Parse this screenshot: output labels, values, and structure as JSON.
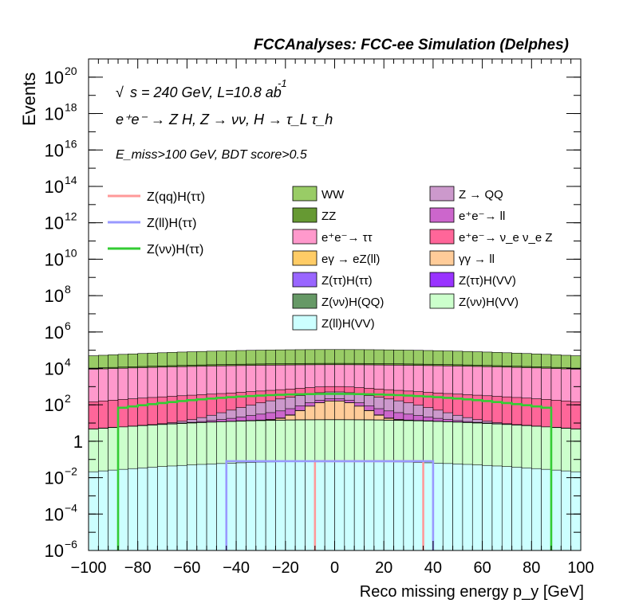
{
  "header": {
    "title": "FCCAnalyses: FCC-ee Simulation (Delphes)"
  },
  "annotations": {
    "line1": "s = 240 GeV, L=10.8 ab",
    "line1_exp": "-1",
    "line2": "e⁺e⁻ → Z H, Z → νν, H → τ_L τ_h",
    "line3": "E_miss>100 GeV, BDT score>0.5"
  },
  "chart_data": {
    "type": "bar",
    "xlabel": "Reco missing energy p_y [GeV]",
    "ylabel": "Events",
    "xlim": [
      -100,
      100
    ],
    "ylim": [
      1e-06,
      1e+21
    ],
    "yscale": "log",
    "bin_width": 4,
    "x_ticks": [
      "−100",
      "−80",
      "−60",
      "−40",
      "−20",
      "0",
      "20",
      "40",
      "60",
      "80",
      "100"
    ],
    "y_ticks": [
      {
        "v": 1e-06,
        "base": "10",
        "exp": "−6"
      },
      {
        "v": 0.0001,
        "base": "10",
        "exp": "−4"
      },
      {
        "v": 0.01,
        "base": "10",
        "exp": "−2"
      },
      {
        "v": 1,
        "base": "1",
        "exp": ""
      },
      {
        "v": 100.0,
        "base": "10",
        "exp": "2"
      },
      {
        "v": 10000.0,
        "base": "10",
        "exp": "4"
      },
      {
        "v": 1000000.0,
        "base": "10",
        "exp": "6"
      },
      {
        "v": 100000000.0,
        "base": "10",
        "exp": "8"
      },
      {
        "v": 10000000000.0,
        "base": "10",
        "exp": "10"
      },
      {
        "v": 1000000000000.0,
        "base": "10",
        "exp": "12"
      },
      {
        "v": 100000000000000.0,
        "base": "10",
        "exp": "14"
      },
      {
        "v": 1e+16,
        "base": "10",
        "exp": "16"
      },
      {
        "v": 1e+18,
        "base": "10",
        "exp": "18"
      },
      {
        "v": 1e+20,
        "base": "10",
        "exp": "20"
      }
    ],
    "stack": [
      {
        "name": "WW",
        "color": "#99cc66",
        "value": 90000.0,
        "width": 76
      },
      {
        "name": "ZZ",
        "color": "#669933",
        "value": 3000.0,
        "width": 78
      },
      {
        "name": "e⁺e⁻→ ττ",
        "color": "#ff99cc",
        "value": 15000.0,
        "width": 96
      },
      {
        "name": "e⁺e⁻→ ν_e ν_e Z",
        "color": "#ff6699",
        "value": 500,
        "width": 62
      },
      {
        "name": "Z → QQ",
        "color": "#cc99cc",
        "value": 300,
        "width": 20
      },
      {
        "name": "e⁺e⁻→ ll",
        "color": "#cc66cc",
        "value": 50,
        "width": 20
      },
      {
        "name": "eγ → eZ(ll)",
        "color": "#ffcc66",
        "value": 2,
        "width": 20
      },
      {
        "name": "γγ → ll",
        "color": "#ffcc99",
        "value": 150,
        "width": 8
      },
      {
        "name": "Z(ττ)H(ττ)",
        "color": "#9966ff",
        "value": 0.1,
        "width": 38
      },
      {
        "name": "Z(ττ)H(VV)",
        "color": "#9933ff",
        "value": 0.3,
        "width": 48
      },
      {
        "name": "Z(νν)H(QQ)",
        "color": "#669966",
        "value": 0.005,
        "width": 62
      },
      {
        "name": "Z(νν)H(VV)",
        "color": "#ccffcc",
        "value": 15,
        "width": 64
      },
      {
        "name": "Z(ll)H(VV)",
        "color": "#ccffff",
        "value": 0.08,
        "width": 60
      }
    ],
    "signal_lines": [
      {
        "name": "Z(qq)H(ττ)",
        "color": "#ff9999",
        "value": 0.08,
        "range": [
          -8,
          36
        ]
      },
      {
        "name": "Z(ll)H(ττ)",
        "color": "#9999ff",
        "value": 0.08,
        "range": [
          -44,
          40
        ]
      },
      {
        "name": "Z(νν)H(ττ)",
        "color": "#33cc33",
        "value": 400,
        "width": 46,
        "range": [
          -88,
          88
        ]
      }
    ]
  }
}
